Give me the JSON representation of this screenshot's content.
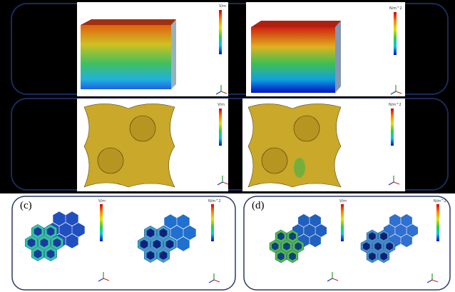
{
  "panels": {
    "top": {
      "left": {
        "unit": "V/m"
      },
      "right": {
        "unit": "N/m^2"
      }
    },
    "middle": {
      "left": {
        "unit": "V/m"
      },
      "right": {
        "unit": "N/m^2"
      }
    },
    "c": {
      "label": "(c)",
      "left": {
        "unit": "V/m"
      },
      "right": {
        "unit": "N/m^2"
      }
    },
    "d": {
      "label": "(d)",
      "left": {
        "unit": "V/m"
      },
      "right": {
        "unit": "N/m^2"
      }
    }
  }
}
